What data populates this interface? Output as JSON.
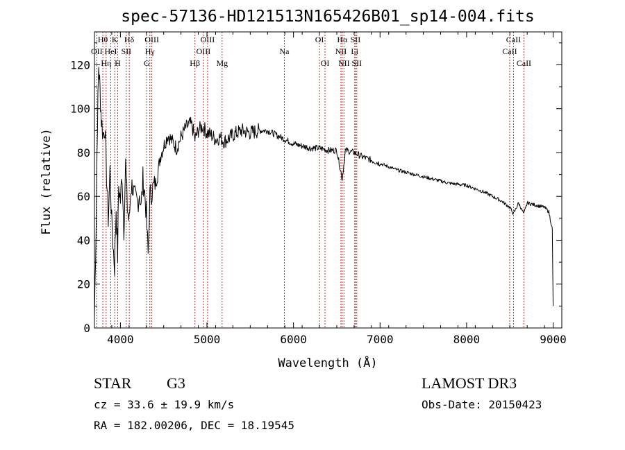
{
  "chart_data": {
    "type": "line",
    "title": "spec-57136-HD121513N165426B01_sp14-004.fits",
    "xlabel": "Wavelength (Å)",
    "ylabel": "Flux (relative)",
    "xlim": [
      3700,
      9100
    ],
    "ylim": [
      0,
      135
    ],
    "xticks": [
      4000,
      5000,
      6000,
      7000,
      8000,
      9000
    ],
    "yticks": [
      0,
      20,
      40,
      60,
      80,
      100,
      120
    ],
    "grid": false,
    "line_color": "#000000",
    "marker_color": "#b03030",
    "series": [
      {
        "name": "flux",
        "x": [
          3700,
          3720,
          3735,
          3750,
          3765,
          3780,
          3800,
          3820,
          3840,
          3860,
          3880,
          3900,
          3920,
          3933,
          3950,
          3968,
          3980,
          4000,
          4020,
          4040,
          4060,
          4080,
          4101,
          4120,
          4140,
          4160,
          4180,
          4200,
          4220,
          4240,
          4260,
          4280,
          4300,
          4320,
          4340,
          4360,
          4380,
          4400,
          4430,
          4460,
          4500,
          4550,
          4600,
          4650,
          4700,
          4750,
          4800,
          4830,
          4861,
          4900,
          4950,
          5000,
          5050,
          5100,
          5150,
          5200,
          5300,
          5400,
          5500,
          5600,
          5700,
          5800,
          5900,
          6000,
          6100,
          6200,
          6300,
          6400,
          6500,
          6563,
          6600,
          6700,
          6800,
          7000,
          7200,
          7400,
          7600,
          7800,
          8000,
          8200,
          8400,
          8498,
          8542,
          8600,
          8662,
          8700,
          8800,
          8900,
          8950,
          8990,
          9000
        ],
        "y": [
          5,
          50,
          95,
          120,
          108,
          95,
          88,
          92,
          70,
          50,
          72,
          48,
          35,
          28,
          55,
          33,
          65,
          58,
          70,
          45,
          75,
          55,
          48,
          64,
          65,
          60,
          58,
          57,
          62,
          55,
          68,
          62,
          52,
          33,
          60,
          62,
          64,
          65,
          70,
          78,
          83,
          88,
          85,
          82,
          87,
          91,
          93,
          92,
          86,
          90,
          92,
          89,
          88,
          86,
          87,
          85,
          88,
          90,
          89,
          90,
          90,
          88,
          86,
          84,
          83,
          82,
          82,
          81,
          81,
          68,
          81,
          80,
          78,
          75,
          72,
          70,
          68,
          66,
          65,
          62,
          58,
          55,
          52,
          57,
          52,
          57,
          56,
          55,
          53,
          45,
          10
        ]
      }
    ],
    "line_markers": [
      {
        "label": "OII",
        "x": 3727,
        "row": 2
      },
      {
        "label": "Hθ",
        "x": 3797,
        "row": 1
      },
      {
        "label": "Hη",
        "x": 3835,
        "row": 3
      },
      {
        "label": "HeI",
        "x": 3889,
        "row": 2
      },
      {
        "label": "K",
        "x": 3934,
        "row": 1
      },
      {
        "label": "H",
        "x": 3968,
        "row": 3
      },
      {
        "label": "SII",
        "x": 4068,
        "row": 2
      },
      {
        "label": "Hδ",
        "x": 4102,
        "row": 1
      },
      {
        "label": "G",
        "x": 4304,
        "row": 3
      },
      {
        "label": "Hγ",
        "x": 4340,
        "row": 2
      },
      {
        "label": "OIII",
        "x": 4363,
        "row": 1
      },
      {
        "label": "Hβ",
        "x": 4861,
        "row": 3
      },
      {
        "label": "OIII",
        "x": 4959,
        "row": 2
      },
      {
        "label": "OIII",
        "x": 5007,
        "row": 1
      },
      {
        "label": "Mg",
        "x": 5175,
        "row": 3
      },
      {
        "label": "Na",
        "x": 5894,
        "row": 2
      },
      {
        "label": "OI",
        "x": 6300,
        "row": 1
      },
      {
        "label": "OI",
        "x": 6364,
        "row": 3
      },
      {
        "label": "NII",
        "x": 6548,
        "row": 2
      },
      {
        "label": "Hα",
        "x": 6563,
        "row": 1
      },
      {
        "label": "NII",
        "x": 6583,
        "row": 3
      },
      {
        "label": "Li",
        "x": 6707,
        "row": 2
      },
      {
        "label": "SII",
        "x": 6716,
        "row": 1
      },
      {
        "label": "SII",
        "x": 6731,
        "row": 3
      },
      {
        "label": "CaII",
        "x": 8498,
        "row": 2
      },
      {
        "label": "CaII",
        "x": 8542,
        "row": 1
      },
      {
        "label": "CaII",
        "x": 8662,
        "row": 3
      }
    ]
  },
  "info": {
    "class_label": "STAR",
    "subclass": "G3",
    "survey": "LAMOST DR3",
    "redshift": "cz = 33.6 ± 19.9 km/s",
    "obs_date": "Obs-Date: 20150423",
    "coords": "RA = 182.00206, DEC =  18.19545"
  }
}
